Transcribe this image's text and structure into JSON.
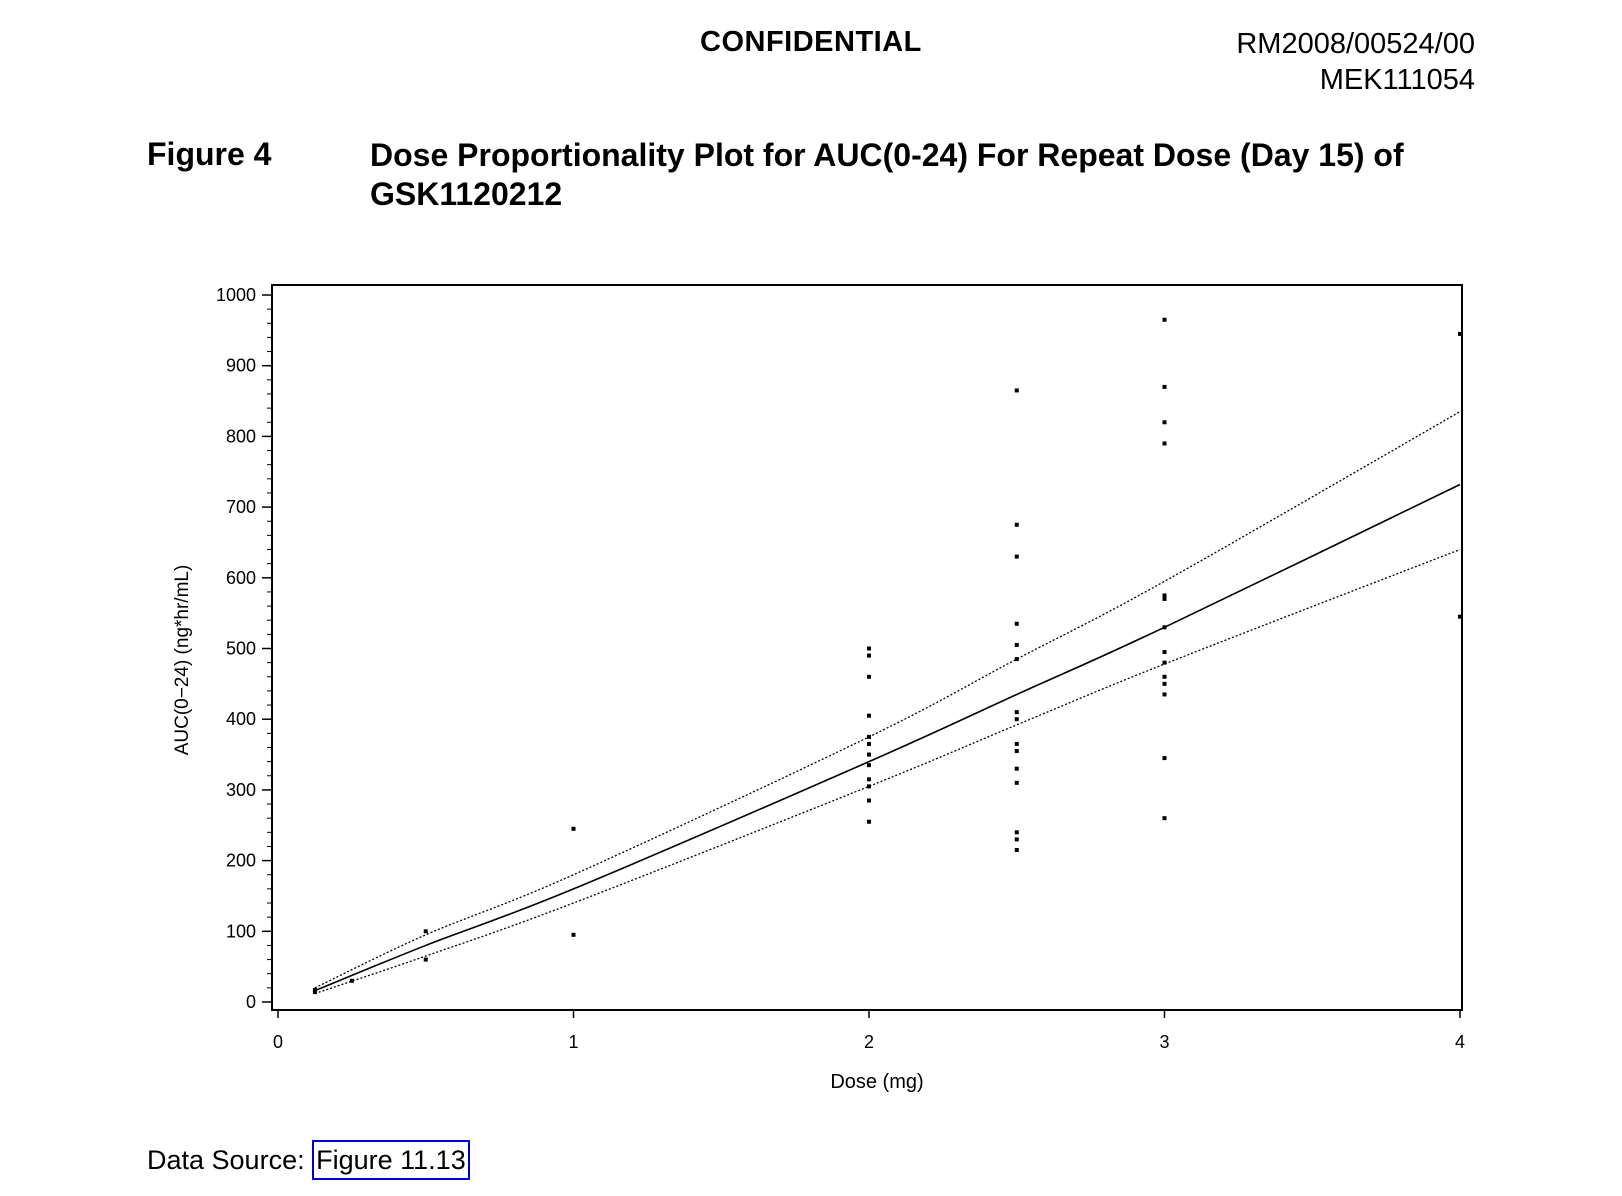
{
  "header": {
    "confidential": "CONFIDENTIAL",
    "doc_number": "RM2008/00524/00",
    "study_id": "MEK111054"
  },
  "figure": {
    "number": "Figure 4",
    "title": "Dose Proportionality Plot for AUC(0-24) For Repeat Dose (Day 15) of GSK1120212"
  },
  "source": {
    "label": "Data Source:",
    "link": "Figure 11.13"
  },
  "chart_data": {
    "type": "scatter",
    "xlabel": "Dose (mg)",
    "ylabel": "AUC(0−24) (ng*hr/mL)",
    "xlim": [
      0,
      4
    ],
    "ylim": [
      0,
      1000
    ],
    "x_ticks": [
      0,
      1,
      2,
      3,
      4
    ],
    "y_ticks": [
      0,
      100,
      200,
      300,
      400,
      500,
      600,
      700,
      800,
      900,
      1000
    ],
    "grid": false,
    "points": [
      {
        "x": 0.125,
        "y": 14
      },
      {
        "x": 0.125,
        "y": 17
      },
      {
        "x": 0.25,
        "y": 30
      },
      {
        "x": 0.5,
        "y": 60
      },
      {
        "x": 0.5,
        "y": 100
      },
      {
        "x": 1,
        "y": 95
      },
      {
        "x": 1,
        "y": 245
      },
      {
        "x": 2,
        "y": 255
      },
      {
        "x": 2,
        "y": 285
      },
      {
        "x": 2,
        "y": 305
      },
      {
        "x": 2,
        "y": 315
      },
      {
        "x": 2,
        "y": 335
      },
      {
        "x": 2,
        "y": 350
      },
      {
        "x": 2,
        "y": 365
      },
      {
        "x": 2,
        "y": 375
      },
      {
        "x": 2,
        "y": 405
      },
      {
        "x": 2,
        "y": 460
      },
      {
        "x": 2,
        "y": 490
      },
      {
        "x": 2,
        "y": 500
      },
      {
        "x": 2.5,
        "y": 215
      },
      {
        "x": 2.5,
        "y": 230
      },
      {
        "x": 2.5,
        "y": 240
      },
      {
        "x": 2.5,
        "y": 310
      },
      {
        "x": 2.5,
        "y": 330
      },
      {
        "x": 2.5,
        "y": 355
      },
      {
        "x": 2.5,
        "y": 365
      },
      {
        "x": 2.5,
        "y": 400
      },
      {
        "x": 2.5,
        "y": 410
      },
      {
        "x": 2.5,
        "y": 485
      },
      {
        "x": 2.5,
        "y": 505
      },
      {
        "x": 2.5,
        "y": 535
      },
      {
        "x": 2.5,
        "y": 630
      },
      {
        "x": 2.5,
        "y": 675
      },
      {
        "x": 2.5,
        "y": 865
      },
      {
        "x": 3,
        "y": 260
      },
      {
        "x": 3,
        "y": 345
      },
      {
        "x": 3,
        "y": 435
      },
      {
        "x": 3,
        "y": 450
      },
      {
        "x": 3,
        "y": 460
      },
      {
        "x": 3,
        "y": 480
      },
      {
        "x": 3,
        "y": 495
      },
      {
        "x": 3,
        "y": 530
      },
      {
        "x": 3,
        "y": 570
      },
      {
        "x": 3,
        "y": 575
      },
      {
        "x": 3,
        "y": 790
      },
      {
        "x": 3,
        "y": 820
      },
      {
        "x": 3,
        "y": 870
      },
      {
        "x": 3,
        "y": 965
      },
      {
        "x": 4,
        "y": 545
      },
      {
        "x": 4,
        "y": 945
      }
    ],
    "fit_lines": [
      {
        "style": "solid",
        "x": [
          0.125,
          0.5,
          1,
          2,
          2.5,
          3,
          4
        ],
        "y": [
          16,
          80,
          160,
          340,
          435,
          530,
          732
        ]
      },
      {
        "style": "dotted",
        "x": [
          0.125,
          0.5,
          1,
          2,
          2.5,
          3,
          4
        ],
        "y": [
          20,
          95,
          180,
          375,
          485,
          595,
          835
        ]
      },
      {
        "style": "dotted",
        "x": [
          0.125,
          0.5,
          1,
          2,
          2.5,
          3,
          4
        ],
        "y": [
          12,
          65,
          140,
          305,
          392,
          478,
          640
        ]
      }
    ]
  }
}
